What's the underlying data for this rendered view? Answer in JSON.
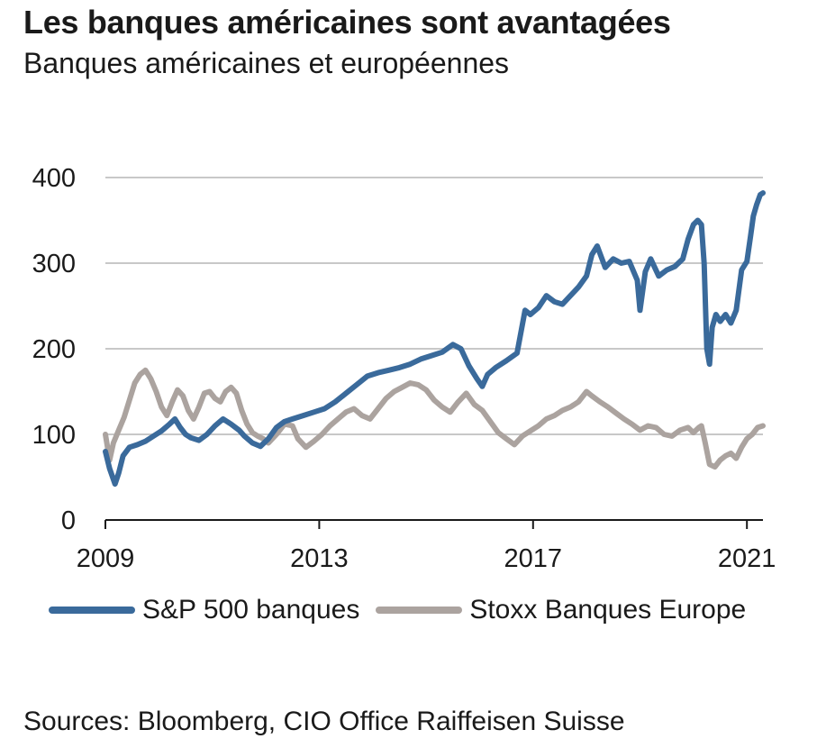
{
  "title": "Les banques américaines sont avantagées",
  "subtitle": "Banques américaines et européennes",
  "source": "Sources: Bloomberg, CIO Office Raiffeisen Suisse",
  "colors": {
    "us_banks": "#3a6a9b",
    "eu_banks": "#aba39f",
    "grid": "#c8c8c8",
    "axis": "#1a1a1a"
  },
  "chart_data": {
    "type": "line",
    "title": "Les banques américaines sont avantagées",
    "subtitle": "Banques américaines et européennes",
    "xlabel": "",
    "ylabel": "",
    "xlim": [
      2009.0,
      2021.3
    ],
    "ylim": [
      0,
      400
    ],
    "yticks": [
      0,
      100,
      200,
      300,
      400
    ],
    "xticks": [
      2009,
      2013,
      2017,
      2021
    ],
    "grid": true,
    "legend_position": "bottom",
    "series": [
      {
        "name": "S&P 500 banques",
        "color": "#3a6a9b",
        "x": [
          2009.0,
          2009.08,
          2009.18,
          2009.25,
          2009.33,
          2009.45,
          2009.6,
          2009.75,
          2009.9,
          2010.05,
          2010.2,
          2010.3,
          2010.4,
          2010.5,
          2010.6,
          2010.75,
          2010.9,
          2011.05,
          2011.2,
          2011.35,
          2011.5,
          2011.6,
          2011.75,
          2011.9,
          2012.05,
          2012.2,
          2012.35,
          2012.5,
          2012.7,
          2012.9,
          2013.1,
          2013.3,
          2013.5,
          2013.7,
          2013.9,
          2014.1,
          2014.3,
          2014.5,
          2014.7,
          2014.9,
          2015.1,
          2015.3,
          2015.5,
          2015.65,
          2015.8,
          2015.95,
          2016.05,
          2016.15,
          2016.3,
          2016.5,
          2016.7,
          2016.85,
          2016.95,
          2017.1,
          2017.25,
          2017.4,
          2017.55,
          2017.7,
          2017.85,
          2018.0,
          2018.1,
          2018.2,
          2018.35,
          2018.5,
          2018.65,
          2018.8,
          2018.95,
          2019.0,
          2019.1,
          2019.2,
          2019.35,
          2019.5,
          2019.65,
          2019.8,
          2019.9,
          2020.0,
          2020.08,
          2020.15,
          2020.2,
          2020.25,
          2020.3,
          2020.35,
          2020.42,
          2020.5,
          2020.6,
          2020.7,
          2020.8,
          2020.9,
          2021.0,
          2021.07,
          2021.12,
          2021.18,
          2021.25,
          2021.3
        ],
        "values": [
          80,
          60,
          42,
          55,
          75,
          85,
          88,
          92,
          98,
          104,
          112,
          118,
          108,
          100,
          96,
          93,
          100,
          110,
          118,
          112,
          105,
          98,
          90,
          86,
          95,
          108,
          115,
          118,
          122,
          126,
          130,
          138,
          148,
          158,
          168,
          172,
          175,
          178,
          182,
          188,
          192,
          196,
          205,
          200,
          180,
          165,
          156,
          170,
          178,
          186,
          195,
          245,
          240,
          248,
          262,
          255,
          252,
          262,
          272,
          285,
          310,
          320,
          295,
          305,
          300,
          302,
          280,
          245,
          290,
          305,
          285,
          292,
          296,
          305,
          328,
          345,
          350,
          345,
          300,
          200,
          182,
          225,
          240,
          232,
          240,
          230,
          245,
          292,
          302,
          332,
          355,
          368,
          380,
          382
        ]
      },
      {
        "name": "Stoxx Banques Europe",
        "color": "#aba39f",
        "x": [
          2009.0,
          2009.08,
          2009.15,
          2009.25,
          2009.35,
          2009.45,
          2009.55,
          2009.65,
          2009.75,
          2009.85,
          2009.95,
          2010.05,
          2010.15,
          2010.25,
          2010.35,
          2010.45,
          2010.55,
          2010.65,
          2010.75,
          2010.85,
          2010.95,
          2011.05,
          2011.15,
          2011.25,
          2011.35,
          2011.45,
          2011.55,
          2011.65,
          2011.75,
          2011.85,
          2011.95,
          2012.05,
          2012.2,
          2012.35,
          2012.5,
          2012.6,
          2012.75,
          2012.9,
          2013.05,
          2013.2,
          2013.35,
          2013.5,
          2013.65,
          2013.8,
          2013.95,
          2014.1,
          2014.25,
          2014.4,
          2014.55,
          2014.7,
          2014.85,
          2015.0,
          2015.15,
          2015.3,
          2015.45,
          2015.6,
          2015.75,
          2015.9,
          2016.05,
          2016.2,
          2016.35,
          2016.5,
          2016.65,
          2016.8,
          2016.95,
          2017.1,
          2017.25,
          2017.4,
          2017.55,
          2017.7,
          2017.85,
          2018.0,
          2018.1,
          2018.25,
          2018.4,
          2018.55,
          2018.7,
          2018.85,
          2019.0,
          2019.15,
          2019.3,
          2019.45,
          2019.6,
          2019.75,
          2019.9,
          2020.0,
          2020.1,
          2020.15,
          2020.22,
          2020.3,
          2020.4,
          2020.5,
          2020.6,
          2020.7,
          2020.8,
          2020.9,
          2021.0,
          2021.1,
          2021.2,
          2021.3
        ],
        "values": [
          100,
          70,
          90,
          105,
          120,
          140,
          160,
          170,
          175,
          165,
          150,
          132,
          122,
          138,
          152,
          145,
          128,
          118,
          132,
          148,
          150,
          142,
          138,
          150,
          155,
          148,
          128,
          112,
          102,
          98,
          95,
          90,
          100,
          112,
          110,
          95,
          85,
          92,
          100,
          110,
          118,
          126,
          130,
          122,
          118,
          130,
          142,
          150,
          155,
          160,
          158,
          152,
          140,
          132,
          126,
          138,
          148,
          135,
          128,
          115,
          102,
          95,
          88,
          98,
          104,
          110,
          118,
          122,
          128,
          132,
          138,
          150,
          145,
          138,
          132,
          125,
          118,
          112,
          105,
          110,
          108,
          100,
          98,
          105,
          108,
          102,
          108,
          110,
          90,
          65,
          62,
          70,
          75,
          78,
          72,
          85,
          95,
          100,
          108,
          110
        ]
      }
    ]
  },
  "legend": {
    "items": [
      "S&P 500 banques",
      "Stoxx Banques Europe"
    ]
  }
}
